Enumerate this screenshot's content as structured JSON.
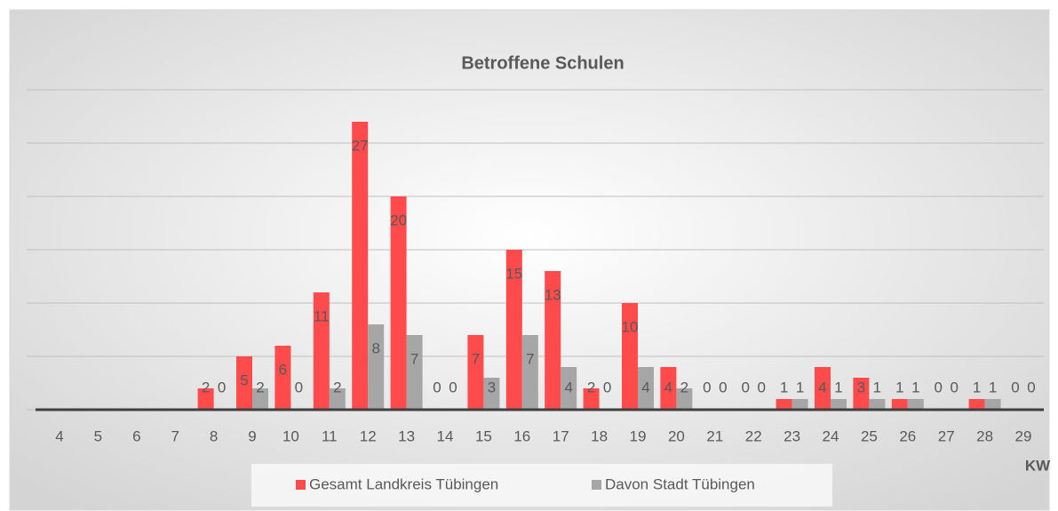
{
  "chart_data": {
    "type": "bar",
    "title": "Betroffene Schulen",
    "x_label": "KW",
    "categories": [
      "4",
      "5",
      "6",
      "7",
      "8",
      "9",
      "10",
      "11",
      "12",
      "13",
      "14",
      "15",
      "16",
      "17",
      "18",
      "19",
      "20",
      "21",
      "22",
      "23",
      "24",
      "25",
      "26",
      "27",
      "28",
      "29"
    ],
    "series": [
      {
        "name": "Gesamt Landkreis Tübingen",
        "color": "#ff4b4b",
        "values": [
          null,
          null,
          null,
          null,
          2,
          5,
          6,
          11,
          27,
          20,
          0,
          7,
          15,
          13,
          2,
          10,
          4,
          0,
          0,
          1,
          4,
          3,
          1,
          0,
          1,
          0
        ]
      },
      {
        "name": "Davon Stadt Tübingen",
        "color": "#a6a6a6",
        "values": [
          null,
          null,
          null,
          null,
          0,
          2,
          0,
          2,
          8,
          7,
          0,
          3,
          7,
          4,
          0,
          4,
          2,
          0,
          0,
          1,
          1,
          1,
          1,
          0,
          1,
          0
        ]
      }
    ],
    "ylim": [
      0,
      30
    ],
    "yticks": [
      0,
      5,
      10,
      15,
      20,
      25,
      30
    ],
    "grid": true,
    "legend": "bottom"
  }
}
